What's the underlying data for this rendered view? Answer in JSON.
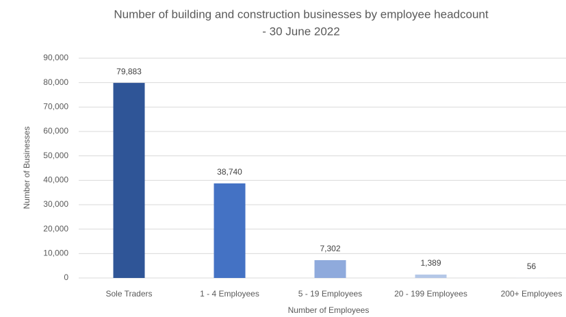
{
  "chart_data": {
    "type": "bar",
    "title": "Number of building and construction businesses by employee headcount",
    "subtitle": "- 30 June 2022",
    "x_label": "Number of Employees",
    "y_label": "Number of Businesses",
    "categories": [
      "Sole Traders",
      "1 - 4 Employees",
      "5 - 19 Employees",
      "20 - 199 Employees",
      "200+ Employees"
    ],
    "values": [
      79883,
      38740,
      7302,
      1389,
      56
    ],
    "value_labels": [
      "79,883",
      "38,740",
      "7,302",
      "1,389",
      "56"
    ],
    "colors": [
      "#2f5597",
      "#4472c4",
      "#8faadc",
      "#b4c7e7",
      "#dae3f3"
    ],
    "ylim": [
      0,
      90000
    ],
    "yticks": [
      0,
      {
        "value": 10000,
        "label": "10,000"
      },
      {
        "value": 20000,
        "label": "20,000"
      },
      {
        "value": 30000,
        "label": "30,000"
      },
      {
        "value": 40000,
        "label": "40,000"
      },
      {
        "value": 50000,
        "label": "50,000"
      },
      {
        "value": 60000,
        "label": "60,000"
      },
      {
        "value": 70000,
        "label": "70,000"
      },
      {
        "value": 80000,
        "label": "80,000"
      },
      {
        "value": 90000,
        "label": "90,000"
      }
    ],
    "grid": true
  }
}
